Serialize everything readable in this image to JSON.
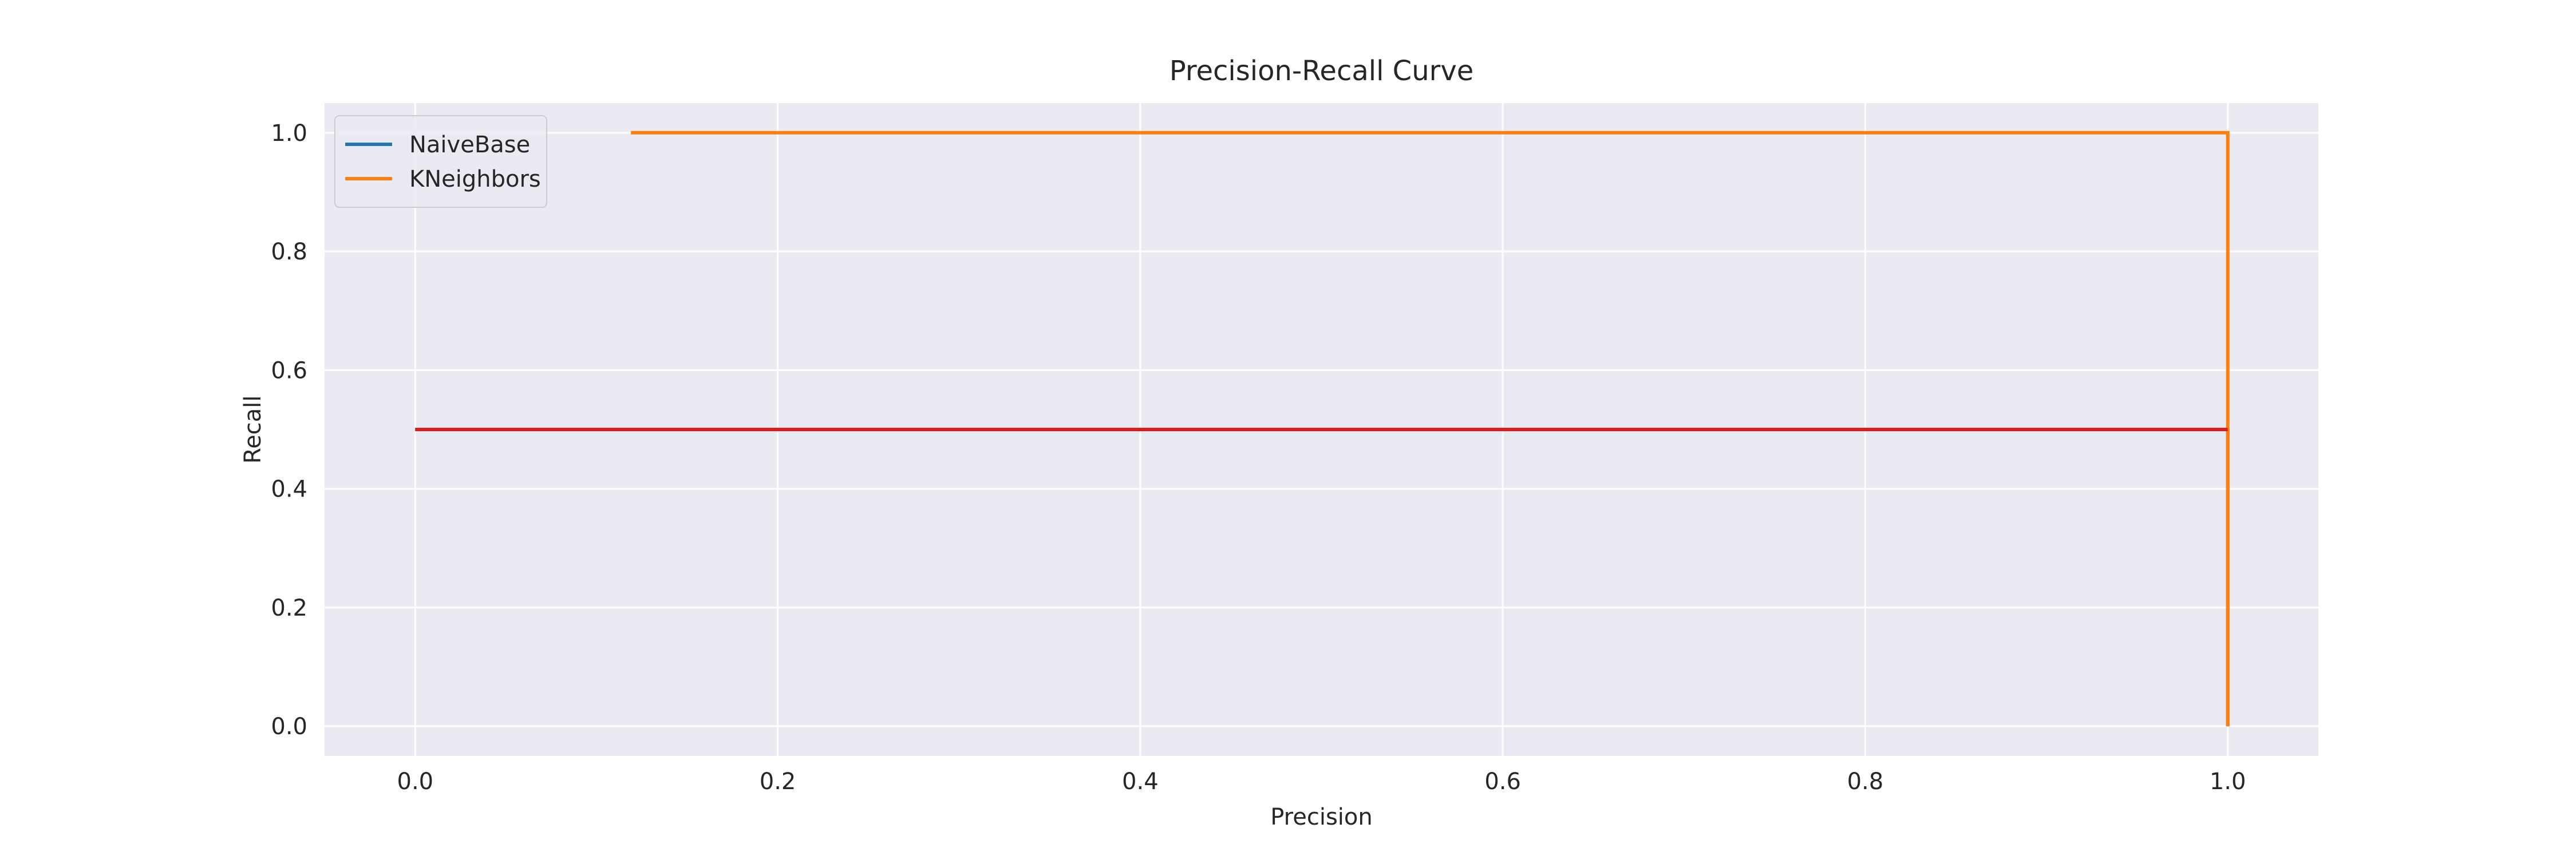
{
  "chart_data": {
    "type": "line",
    "title": "Precision-Recall Curve",
    "xlabel": "Precision",
    "ylabel": "Recall",
    "xlim": [
      -0.05,
      1.05
    ],
    "ylim": [
      -0.05,
      1.05
    ],
    "xticks": [
      0.0,
      0.2,
      0.4,
      0.6,
      0.8,
      1.0
    ],
    "xtick_labels": [
      "0.0",
      "0.2",
      "0.4",
      "0.6",
      "0.8",
      "1.0"
    ],
    "yticks": [
      0.0,
      0.2,
      0.4,
      0.6,
      0.8,
      1.0
    ],
    "ytick_labels": [
      "0.0",
      "0.2",
      "0.4",
      "0.6",
      "0.8",
      "1.0"
    ],
    "grid": true,
    "legend_position": "top-left",
    "background": "#eaeaf2",
    "series": [
      {
        "name": "NaiveBase",
        "color": "#1f77b4",
        "x": [
          0.0,
          1.0,
          1.0
        ],
        "y": [
          0.5,
          0.5,
          0.0
        ]
      },
      {
        "name": "KNeighbors",
        "color": "#ff7f0e",
        "x": [
          0.119,
          1.0,
          1.0
        ],
        "y": [
          1.0,
          1.0,
          0.0
        ]
      }
    ],
    "annotations": [
      {
        "type": "hline",
        "y": 0.5,
        "x": [
          0.0,
          1.0
        ],
        "color": "#e31a1c"
      }
    ]
  }
}
